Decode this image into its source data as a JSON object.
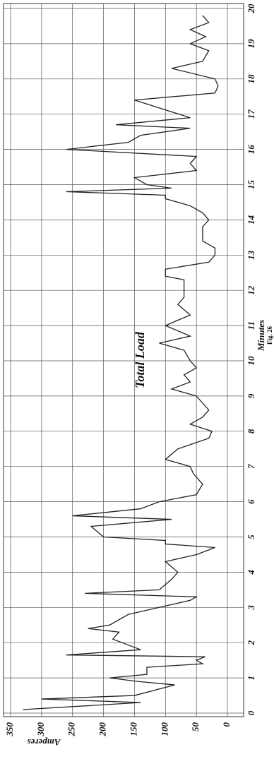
{
  "chart_data": {
    "type": "line",
    "annotation": "Total Load",
    "xlabel": "Minutes",
    "caption": "Fig. 26",
    "ylabel": "Amperes",
    "x": [
      0.1,
      0.3,
      0.4,
      0.5,
      0.8,
      0.9,
      1.0,
      1.1,
      1.3,
      1.4,
      1.5,
      1.6,
      1.65,
      1.8,
      2.0,
      2.1,
      2.3,
      2.4,
      2.5,
      2.8,
      3.0,
      3.2,
      3.3,
      3.4,
      3.5,
      3.8,
      4.0,
      4.3,
      4.5,
      4.7,
      4.8,
      4.9,
      5.0,
      5.3,
      5.5,
      5.6,
      5.8,
      6.0,
      6.2,
      6.5,
      6.8,
      7.0,
      7.2,
      7.5,
      7.8,
      8.0,
      8.2,
      8.4,
      8.6,
      9.0,
      9.2,
      9.4,
      9.6,
      9.8,
      10.0,
      10.3,
      10.5,
      10.7,
      11.0,
      11.3,
      11.6,
      11.8,
      12.3,
      12.4,
      12.6,
      12.8,
      13.0,
      13.2,
      13.4,
      13.8,
      14.0,
      14.2,
      14.4,
      14.6,
      14.7,
      14.8,
      14.9,
      15.0,
      15.2,
      15.4,
      15.6,
      15.8,
      16.0,
      16.2,
      16.4,
      16.6,
      16.7,
      16.9,
      17.4,
      17.6,
      17.8,
      18.0,
      18.3,
      18.5,
      18.8,
      19.0,
      19.2,
      19.4,
      19.6,
      19.8
    ],
    "series": [
      {
        "color": "#222222",
        "values": [
          330,
          140,
          300,
          150,
          85,
          145,
          190,
          130,
          130,
          40,
          50,
          36,
          260,
          140,
          170,
          185,
          175,
          225,
          190,
          160,
          110,
          60,
          50,
          230,
          110,
          90,
          80,
          100,
          50,
          20,
          100,
          100,
          200,
          220,
          90,
          250,
          140,
          110,
          50,
          40,
          55,
          60,
          100,
          80,
          30,
          25,
          60,
          40,
          30,
          50,
          90,
          60,
          70,
          50,
          60,
          70,
          110,
          60,
          100,
          60,
          80,
          70,
          70,
          100,
          100,
          30,
          20,
          20,
          40,
          40,
          30,
          40,
          60,
          100,
          100,
          260,
          90,
          130,
          150,
          50,
          60,
          50,
          260,
          160,
          140,
          60,
          180,
          60,
          150,
          20,
          15,
          20,
          90,
          40,
          30,
          60,
          35,
          60,
          30,
          40
        ]
      }
    ],
    "xlim": [
      0,
      20
    ],
    "xticks": [
      0,
      1,
      2,
      3,
      4,
      5,
      6,
      7,
      8,
      9,
      10,
      11,
      12,
      13,
      14,
      15,
      16,
      17,
      18,
      19,
      20
    ],
    "ylim": [
      0,
      350
    ],
    "yticks": [
      0,
      50,
      100,
      150,
      200,
      250,
      300,
      350
    ],
    "grid": true
  }
}
